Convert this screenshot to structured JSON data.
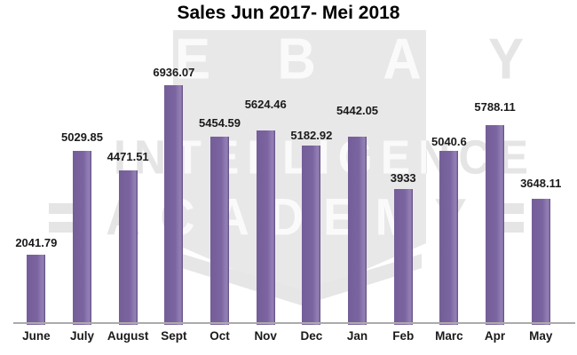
{
  "title": "Sales Jun 2017- Mei 2018",
  "watermark": {
    "line1": "EBAY",
    "line2": "INTELLIGENCE",
    "line3": "ACADEMY"
  },
  "chart_data": {
    "type": "bar",
    "title": "Sales Jun 2017- Mei 2018",
    "categories": [
      "June",
      "July",
      "August",
      "Sept",
      "Oct",
      "Nov",
      "Dec",
      "Jan",
      "Feb",
      "Marc",
      "Apr",
      "May"
    ],
    "values": [
      2041.79,
      5029.85,
      4471.51,
      6936.07,
      5454.59,
      5624.46,
      5182.92,
      5442.05,
      3933,
      5040.6,
      5788.11,
      3648.11
    ],
    "value_labels": [
      "2041.79",
      "5029.85",
      "4471.51",
      "6936.07",
      "5454.59",
      "5624.46",
      "5182.92",
      "5442.05",
      "3933",
      "5040.6",
      "5788.11",
      "3648.11"
    ],
    "label_dy": [
      6,
      8,
      8,
      7,
      8,
      22,
      4,
      22,
      5,
      3,
      13,
      10
    ],
    "xlabel": "",
    "ylabel": "",
    "ylim": [
      0,
      7000
    ],
    "grid": false,
    "legend": "none",
    "bar_color": "#7B64A0",
    "axis_color": "#ABABAB",
    "label_color": "#1A1A1A"
  }
}
